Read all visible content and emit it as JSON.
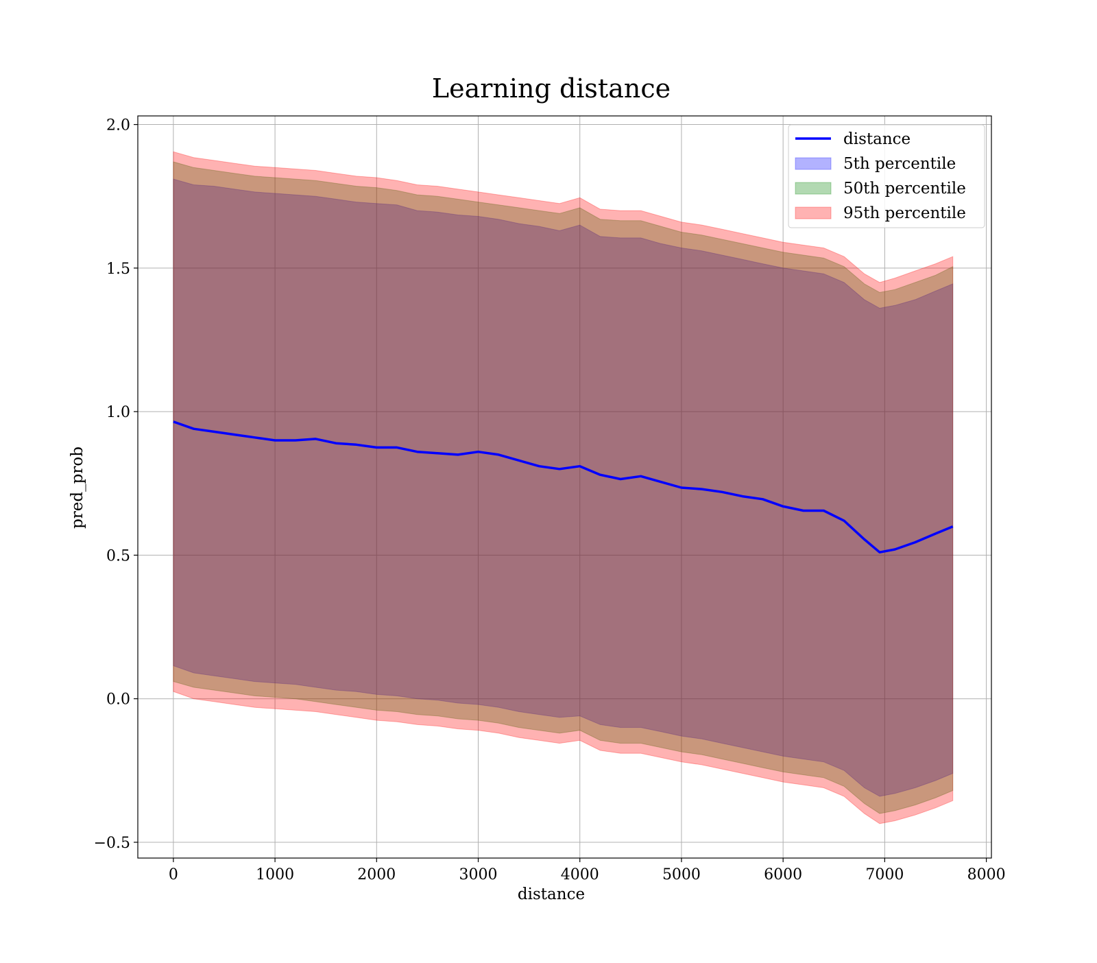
{
  "chart_data": {
    "type": "area",
    "title": "Learning distance",
    "xlabel": "distance",
    "ylabel": "pred_prob",
    "xlim": [
      -350,
      8050
    ],
    "ylim": [
      -0.555,
      2.03
    ],
    "x_ticks": [
      0,
      1000,
      2000,
      3000,
      4000,
      5000,
      6000,
      7000,
      8000
    ],
    "x_tick_labels": [
      "0",
      "1000",
      "2000",
      "3000",
      "4000",
      "5000",
      "6000",
      "7000",
      "8000"
    ],
    "y_ticks": [
      -0.5,
      0.0,
      0.5,
      1.0,
      1.5,
      2.0
    ],
    "y_tick_labels": [
      "−0.5",
      "0.0",
      "0.5",
      "1.0",
      "1.5",
      "2.0"
    ],
    "grid": true,
    "legend_position": "upper-right",
    "x": [
      0,
      200,
      400,
      600,
      800,
      1000,
      1200,
      1400,
      1600,
      1800,
      2000,
      2200,
      2400,
      2600,
      2800,
      3000,
      3200,
      3400,
      3600,
      3800,
      4000,
      4200,
      4400,
      4600,
      4800,
      5000,
      5200,
      5400,
      5600,
      5800,
      6000,
      6200,
      6400,
      6600,
      6800,
      6950,
      7100,
      7300,
      7500,
      7670
    ],
    "series": [
      {
        "name": "distance",
        "kind": "line",
        "color": "#0000ff",
        "values": [
          0.965,
          0.94,
          0.93,
          0.92,
          0.91,
          0.9,
          0.9,
          0.905,
          0.89,
          0.885,
          0.875,
          0.875,
          0.86,
          0.855,
          0.85,
          0.86,
          0.85,
          0.83,
          0.81,
          0.8,
          0.81,
          0.78,
          0.765,
          0.775,
          0.755,
          0.735,
          0.73,
          0.72,
          0.705,
          0.695,
          0.67,
          0.655,
          0.655,
          0.62,
          0.555,
          0.51,
          0.52,
          0.545,
          0.575,
          0.6
        ]
      },
      {
        "name": "5th percentile",
        "kind": "band",
        "color": "#0000ff",
        "upper": [
          1.81,
          1.79,
          1.785,
          1.775,
          1.765,
          1.76,
          1.755,
          1.75,
          1.74,
          1.73,
          1.725,
          1.72,
          1.7,
          1.695,
          1.685,
          1.68,
          1.67,
          1.655,
          1.645,
          1.63,
          1.65,
          1.61,
          1.605,
          1.605,
          1.585,
          1.57,
          1.56,
          1.545,
          1.53,
          1.515,
          1.5,
          1.49,
          1.48,
          1.45,
          1.39,
          1.36,
          1.37,
          1.39,
          1.42,
          1.445
        ],
        "lower": [
          0.115,
          0.09,
          0.08,
          0.07,
          0.06,
          0.055,
          0.05,
          0.04,
          0.03,
          0.025,
          0.015,
          0.01,
          0.0,
          -0.005,
          -0.015,
          -0.02,
          -0.03,
          -0.045,
          -0.055,
          -0.065,
          -0.06,
          -0.09,
          -0.1,
          -0.1,
          -0.115,
          -0.13,
          -0.14,
          -0.155,
          -0.17,
          -0.185,
          -0.2,
          -0.21,
          -0.22,
          -0.25,
          -0.31,
          -0.34,
          -0.33,
          -0.31,
          -0.285,
          -0.26
        ]
      },
      {
        "name": "50th percentile",
        "kind": "band",
        "color": "#008000",
        "upper": [
          1.87,
          1.85,
          1.84,
          1.83,
          1.82,
          1.815,
          1.81,
          1.805,
          1.795,
          1.785,
          1.78,
          1.77,
          1.755,
          1.75,
          1.74,
          1.73,
          1.72,
          1.71,
          1.7,
          1.69,
          1.71,
          1.67,
          1.665,
          1.665,
          1.645,
          1.625,
          1.615,
          1.6,
          1.585,
          1.57,
          1.555,
          1.545,
          1.535,
          1.505,
          1.445,
          1.415,
          1.425,
          1.45,
          1.475,
          1.505
        ],
        "lower": [
          0.06,
          0.04,
          0.03,
          0.02,
          0.01,
          0.005,
          0.0,
          -0.01,
          -0.02,
          -0.03,
          -0.04,
          -0.045,
          -0.055,
          -0.06,
          -0.07,
          -0.075,
          -0.085,
          -0.1,
          -0.11,
          -0.12,
          -0.11,
          -0.145,
          -0.155,
          -0.155,
          -0.17,
          -0.185,
          -0.195,
          -0.21,
          -0.225,
          -0.24,
          -0.255,
          -0.265,
          -0.275,
          -0.305,
          -0.365,
          -0.4,
          -0.39,
          -0.37,
          -0.345,
          -0.32
        ]
      },
      {
        "name": "95th percentile",
        "kind": "band",
        "color": "#ff0000",
        "upper": [
          1.905,
          1.885,
          1.875,
          1.865,
          1.855,
          1.85,
          1.845,
          1.84,
          1.83,
          1.82,
          1.815,
          1.805,
          1.79,
          1.785,
          1.775,
          1.765,
          1.755,
          1.745,
          1.735,
          1.725,
          1.745,
          1.705,
          1.7,
          1.7,
          1.68,
          1.66,
          1.65,
          1.635,
          1.62,
          1.605,
          1.59,
          1.58,
          1.57,
          1.54,
          1.48,
          1.45,
          1.465,
          1.49,
          1.515,
          1.54
        ],
        "lower": [
          0.025,
          0.0,
          -0.01,
          -0.02,
          -0.03,
          -0.035,
          -0.04,
          -0.045,
          -0.055,
          -0.065,
          -0.075,
          -0.08,
          -0.09,
          -0.095,
          -0.105,
          -0.11,
          -0.12,
          -0.135,
          -0.145,
          -0.155,
          -0.145,
          -0.18,
          -0.19,
          -0.19,
          -0.205,
          -0.22,
          -0.23,
          -0.245,
          -0.26,
          -0.275,
          -0.29,
          -0.3,
          -0.31,
          -0.34,
          -0.4,
          -0.435,
          -0.425,
          -0.405,
          -0.38,
          -0.355
        ]
      }
    ]
  }
}
